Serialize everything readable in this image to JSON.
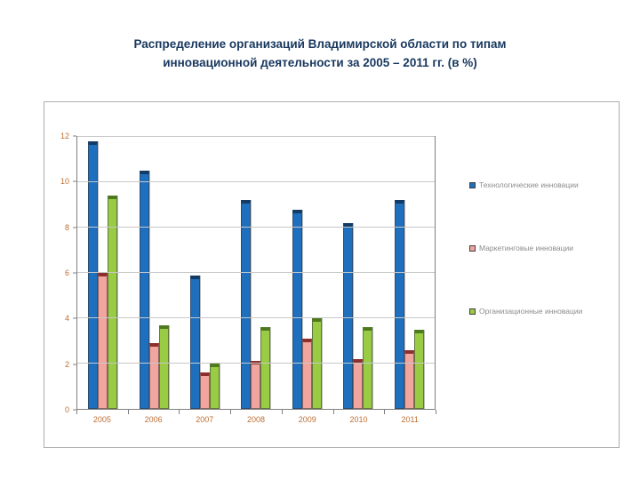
{
  "title": {
    "line1": "Распределение организаций Владимирской области по типам",
    "line2": "инновационной деятельности за 2005 – 2011 гг. (в %)"
  },
  "chart_data": {
    "type": "bar",
    "title": "Распределение организаций Владимирской области по типам инновационной деятельности за 2005 – 2011 гг. (в %)",
    "categories": [
      "2005",
      "2006",
      "2007",
      "2008",
      "2009",
      "2010",
      "2011"
    ],
    "series": [
      {
        "name": "Технологические инновации",
        "color": "#1F6FBF",
        "cap_color": "#123C66",
        "values": [
          11.8,
          10.5,
          5.9,
          9.2,
          8.8,
          8.2,
          9.2
        ]
      },
      {
        "name": "Маркетинговые инновации",
        "color": "#F2A49E",
        "cap_color": "#8E2F2C",
        "values": [
          6.0,
          2.9,
          1.6,
          2.1,
          3.1,
          2.2,
          2.6
        ]
      },
      {
        "name": "Организационные инновации",
        "color": "#9ACB45",
        "cap_color": "#4E7A1E",
        "values": [
          9.4,
          3.7,
          2.0,
          3.6,
          4.0,
          3.6,
          3.5
        ]
      }
    ],
    "xlabel": "",
    "ylabel": "",
    "ylim": [
      0,
      12
    ],
    "yticks": [
      0,
      2,
      4,
      6,
      8,
      10,
      12
    ],
    "grid": true,
    "legend_position": "right"
  }
}
